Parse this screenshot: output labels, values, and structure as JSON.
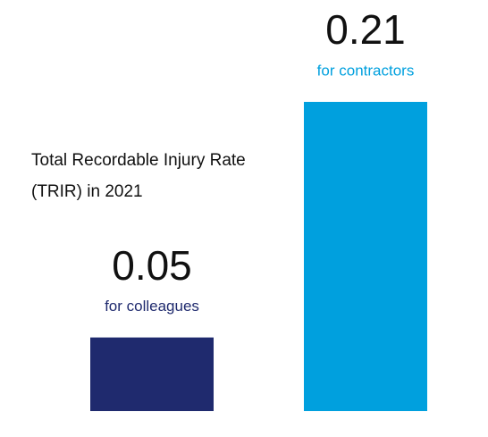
{
  "chart_data": {
    "type": "bar",
    "title": "Total Recordable Injury Rate (TRIR) in 2021",
    "categories": [
      "for colleagues",
      "for contractors"
    ],
    "values": [
      0.05,
      0.21
    ],
    "colors": [
      "#1f2a6e",
      "#00a0de"
    ]
  }
}
